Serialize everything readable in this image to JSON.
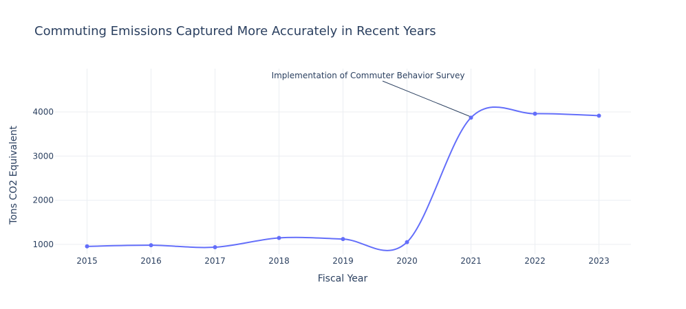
{
  "chart_data": {
    "type": "line",
    "title": "Commuting Emissions Captured More Accurately in Recent Years",
    "xlabel": "Fiscal Year",
    "ylabel": "Tons CO2 Equivalent",
    "x": [
      2015,
      2016,
      2017,
      2018,
      2019,
      2020,
      2021,
      2022,
      2023
    ],
    "series": [
      {
        "values": [
          955,
          980,
          935,
          1145,
          1120,
          1050,
          3870,
          3960,
          3915
        ]
      }
    ],
    "xlim": [
      2014.5,
      2023.5
    ],
    "ylim": [
      780,
      4980
    ],
    "x_ticks": [
      2015,
      2016,
      2017,
      2018,
      2019,
      2020,
      2021,
      2022,
      2023
    ],
    "y_ticks": [
      1000,
      2000,
      3000,
      4000
    ],
    "grid": true,
    "line_shape": "spline",
    "colors": {
      "series": "#636efa",
      "text": "#2a3f5f",
      "grid": "#ebeef2"
    },
    "annotation": {
      "text": "Implementation of Commuter Behavior Survey",
      "x": 2021,
      "y": 3870
    }
  }
}
